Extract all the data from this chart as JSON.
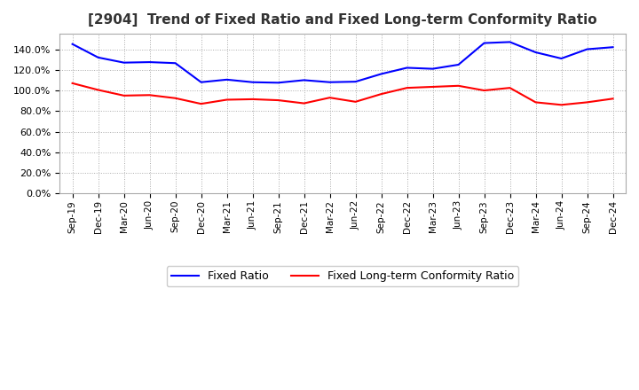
{
  "title": "[2904]  Trend of Fixed Ratio and Fixed Long-term Conformity Ratio",
  "x_labels": [
    "Sep-19",
    "Dec-19",
    "Mar-20",
    "Jun-20",
    "Sep-20",
    "Dec-20",
    "Mar-21",
    "Jun-21",
    "Sep-21",
    "Dec-21",
    "Mar-22",
    "Jun-22",
    "Sep-22",
    "Dec-22",
    "Mar-23",
    "Jun-23",
    "Sep-23",
    "Dec-23",
    "Mar-24",
    "Jun-24",
    "Sep-24",
    "Dec-24"
  ],
  "fixed_ratio": [
    145.0,
    132.0,
    127.0,
    127.5,
    126.5,
    108.0,
    110.5,
    108.0,
    107.5,
    110.0,
    108.0,
    108.5,
    116.0,
    122.0,
    121.0,
    125.0,
    146.0,
    147.0,
    137.0,
    131.0,
    140.0,
    142.0
  ],
  "fixed_lt_ratio": [
    107.0,
    100.5,
    95.0,
    95.5,
    92.5,
    87.0,
    91.0,
    91.5,
    90.5,
    87.5,
    93.0,
    89.0,
    96.5,
    102.5,
    103.5,
    104.5,
    100.0,
    102.5,
    88.5,
    86.0,
    88.5,
    92.0
  ],
  "fixed_ratio_color": "#0000ff",
  "fixed_lt_ratio_color": "#ff0000",
  "ylim": [
    0,
    155
  ],
  "yticks": [
    0,
    20,
    40,
    60,
    80,
    100,
    120,
    140
  ],
  "background_color": "#ffffff",
  "grid_color": "#aaaaaa",
  "title_color": "#333333",
  "legend_fixed": "Fixed Ratio",
  "legend_fixed_lt": "Fixed Long-term Conformity Ratio"
}
